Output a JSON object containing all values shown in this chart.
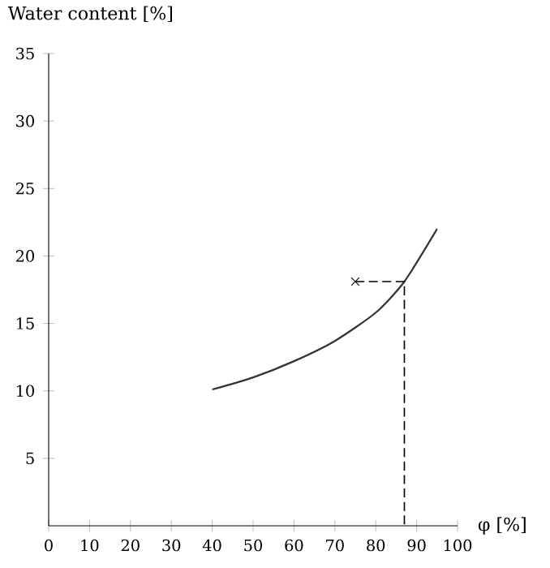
{
  "chart_data": {
    "type": "line",
    "xlabel": "φ [%]",
    "ylabel": "Water content [%]",
    "xlim": [
      0,
      100
    ],
    "ylim": [
      0,
      35
    ],
    "xticks": [
      0,
      10,
      20,
      30,
      40,
      50,
      60,
      70,
      80,
      90,
      100
    ],
    "yticks": [
      5,
      10,
      15,
      20,
      25,
      30,
      35
    ],
    "grid": false,
    "series": [
      {
        "color": "#333333",
        "line_style": "solid",
        "x": [
          40,
          50,
          60,
          70,
          80,
          87,
          95
        ],
        "values": [
          10.1,
          11,
          12.2,
          13.7,
          15.8,
          18.1,
          22
        ]
      },
      {
        "type": "line",
        "color": "#000000",
        "line_style": "dashed",
        "x": [
          75,
          87,
          87
        ],
        "values": [
          18.1,
          18.1,
          0
        ]
      },
      {
        "type": "scatter",
        "color": "#000000",
        "marker": "cross",
        "x": [
          75
        ],
        "values": [
          18.1
        ]
      }
    ]
  }
}
